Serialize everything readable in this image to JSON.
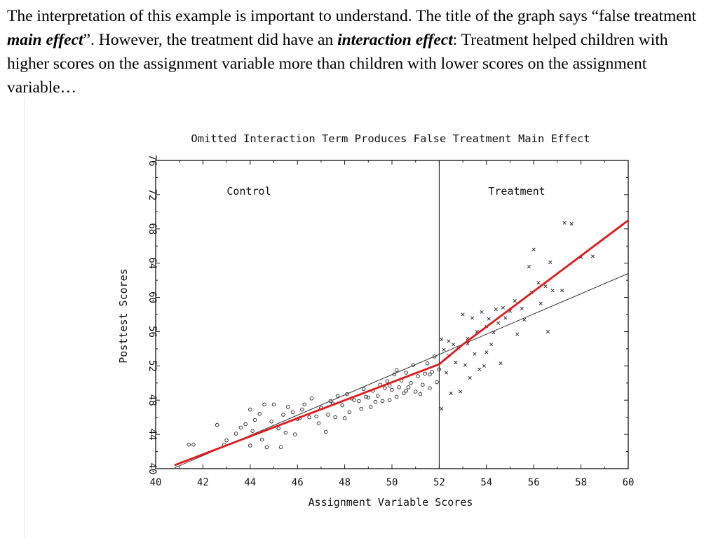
{
  "slide": {
    "p1": "The interpretation of this example is important to understand. The title of the graph says “false treatment ",
    "p2": "main effect",
    "p3": "”. However, the treatment did have an ",
    "p4": "interaction effect",
    "p5": ": Treatment helped children with higher scores on the assignment variable more than children with lower scores on the assignment variable…"
  },
  "chart_data": {
    "type": "scatter",
    "title": "Omitted Interaction Term Produces False Treatment Main Effect",
    "xlabel": "Assignment Variable Scores",
    "ylabel": "Posttest Scores",
    "xlim": [
      40,
      60
    ],
    "ylim": [
      40,
      76
    ],
    "xticks": [
      40,
      42,
      44,
      46,
      48,
      50,
      52,
      54,
      56,
      58,
      60
    ],
    "yticks": [
      40,
      44,
      48,
      52,
      56,
      60,
      64,
      68,
      72,
      76
    ],
    "cutoff": 52,
    "region_labels": {
      "control": "Control",
      "treatment": "Treatment"
    },
    "colors": {
      "fit_red": "#e0191b",
      "fit_thin": "#333333",
      "axis": "#111111"
    },
    "series": [
      {
        "name": "Control",
        "marker": "circle",
        "points": [
          [
            41.4,
            42.8
          ],
          [
            41.6,
            42.8
          ],
          [
            42.6,
            45.1
          ],
          [
            42.9,
            42.8
          ],
          [
            43.0,
            43.3
          ],
          [
            43.4,
            44.1
          ],
          [
            43.6,
            44.8
          ],
          [
            43.8,
            45.2
          ],
          [
            44.0,
            46.9
          ],
          [
            44.0,
            42.7
          ],
          [
            44.1,
            44.4
          ],
          [
            44.2,
            45.7
          ],
          [
            44.4,
            46.4
          ],
          [
            44.5,
            43.4
          ],
          [
            44.6,
            47.5
          ],
          [
            44.7,
            42.5
          ],
          [
            44.9,
            45.5
          ],
          [
            45.0,
            47.5
          ],
          [
            45.2,
            44.7
          ],
          [
            45.3,
            42.5
          ],
          [
            45.4,
            46.3
          ],
          [
            45.5,
            44.2
          ],
          [
            45.6,
            47.2
          ],
          [
            45.8,
            46.6
          ],
          [
            45.9,
            44.0
          ],
          [
            46.0,
            45.8
          ],
          [
            46.2,
            46.9
          ],
          [
            46.3,
            47.5
          ],
          [
            46.5,
            46.0
          ],
          [
            46.6,
            48.2
          ],
          [
            46.8,
            46.1
          ],
          [
            46.9,
            45.3
          ],
          [
            47.0,
            47.1
          ],
          [
            47.2,
            44.3
          ],
          [
            47.3,
            46.3
          ],
          [
            47.5,
            47.6
          ],
          [
            47.6,
            46.0
          ],
          [
            47.7,
            48.5
          ],
          [
            47.9,
            47.4
          ],
          [
            48.0,
            45.9
          ],
          [
            48.1,
            48.7
          ],
          [
            48.2,
            46.6
          ],
          [
            48.3,
            48.2
          ],
          [
            48.4,
            48.0
          ],
          [
            48.6,
            47.9
          ],
          [
            48.7,
            47.0
          ],
          [
            48.8,
            49.3
          ],
          [
            49.0,
            48.3
          ],
          [
            49.1,
            47.2
          ],
          [
            49.2,
            49.1
          ],
          [
            49.3,
            47.8
          ],
          [
            49.4,
            48.5
          ],
          [
            49.5,
            49.8
          ],
          [
            49.6,
            47.9
          ],
          [
            49.7,
            49.4
          ],
          [
            49.8,
            50.2
          ],
          [
            49.9,
            48.0
          ],
          [
            50.0,
            49.2
          ],
          [
            50.1,
            51.0
          ],
          [
            50.2,
            48.4
          ],
          [
            50.3,
            49.5
          ],
          [
            50.4,
            50.3
          ],
          [
            50.5,
            48.8
          ],
          [
            50.6,
            51.2
          ],
          [
            50.7,
            49.5
          ],
          [
            50.8,
            50.0
          ],
          [
            50.9,
            52.1
          ],
          [
            51.0,
            49.0
          ],
          [
            51.1,
            50.8
          ],
          [
            51.2,
            48.7
          ],
          [
            51.3,
            49.8
          ],
          [
            51.4,
            51.1
          ],
          [
            51.5,
            52.3
          ],
          [
            51.6,
            49.4
          ],
          [
            51.7,
            51.3
          ],
          [
            51.8,
            53.1
          ],
          [
            51.9,
            50.1
          ],
          [
            52.0,
            51.6
          ],
          [
            51.6,
            51.0
          ],
          [
            50.6,
            49.1
          ],
          [
            49.9,
            49.7
          ],
          [
            50.2,
            51.5
          ],
          [
            48.9,
            48.4
          ],
          [
            47.4,
            47.9
          ],
          [
            46.1,
            45.9
          ]
        ]
      },
      {
        "name": "Treatment",
        "marker": "x",
        "points": [
          [
            52.1,
            47.0
          ],
          [
            52.1,
            55.1
          ],
          [
            52.2,
            53.9
          ],
          [
            52.3,
            51.2
          ],
          [
            52.4,
            53.2
          ],
          [
            52.5,
            48.8
          ],
          [
            52.6,
            54.5
          ],
          [
            52.7,
            52.4
          ],
          [
            52.8,
            54.1
          ],
          [
            52.9,
            49.0
          ],
          [
            53.0,
            58.0
          ],
          [
            53.1,
            52.1
          ],
          [
            53.2,
            55.2
          ],
          [
            53.3,
            50.6
          ],
          [
            53.4,
            57.6
          ],
          [
            53.5,
            53.4
          ],
          [
            53.6,
            56.0
          ],
          [
            53.7,
            51.6
          ],
          [
            53.8,
            58.3
          ],
          [
            53.9,
            52.0
          ],
          [
            54.0,
            56.6
          ],
          [
            54.1,
            57.5
          ],
          [
            54.2,
            54.5
          ],
          [
            54.3,
            55.9
          ],
          [
            54.4,
            58.6
          ],
          [
            54.5,
            57.0
          ],
          [
            54.6,
            52.3
          ],
          [
            54.7,
            58.8
          ],
          [
            54.8,
            57.6
          ],
          [
            55.0,
            58.4
          ],
          [
            55.2,
            59.6
          ],
          [
            55.3,
            55.7
          ],
          [
            55.5,
            58.7
          ],
          [
            55.6,
            57.4
          ],
          [
            55.8,
            63.6
          ],
          [
            55.9,
            60.6
          ],
          [
            56.0,
            65.6
          ],
          [
            56.2,
            61.7
          ],
          [
            56.3,
            59.3
          ],
          [
            56.5,
            61.3
          ],
          [
            56.6,
            56.0
          ],
          [
            56.7,
            64.1
          ],
          [
            56.8,
            60.8
          ],
          [
            57.2,
            60.8
          ],
          [
            57.3,
            68.7
          ],
          [
            57.6,
            68.6
          ],
          [
            58.0,
            64.7
          ],
          [
            58.5,
            64.8
          ],
          [
            52.4,
            54.9
          ],
          [
            53.2,
            54.6
          ],
          [
            54.0,
            53.6
          ]
        ]
      }
    ],
    "fit_red": [
      [
        40.8,
        40.4
      ],
      [
        52.0,
        52.2
      ],
      [
        53.0,
        54.5
      ],
      [
        60.0,
        69.0
      ]
    ],
    "fit_thin": [
      [
        40.8,
        40.1
      ],
      [
        60.0,
        62.8
      ]
    ]
  }
}
